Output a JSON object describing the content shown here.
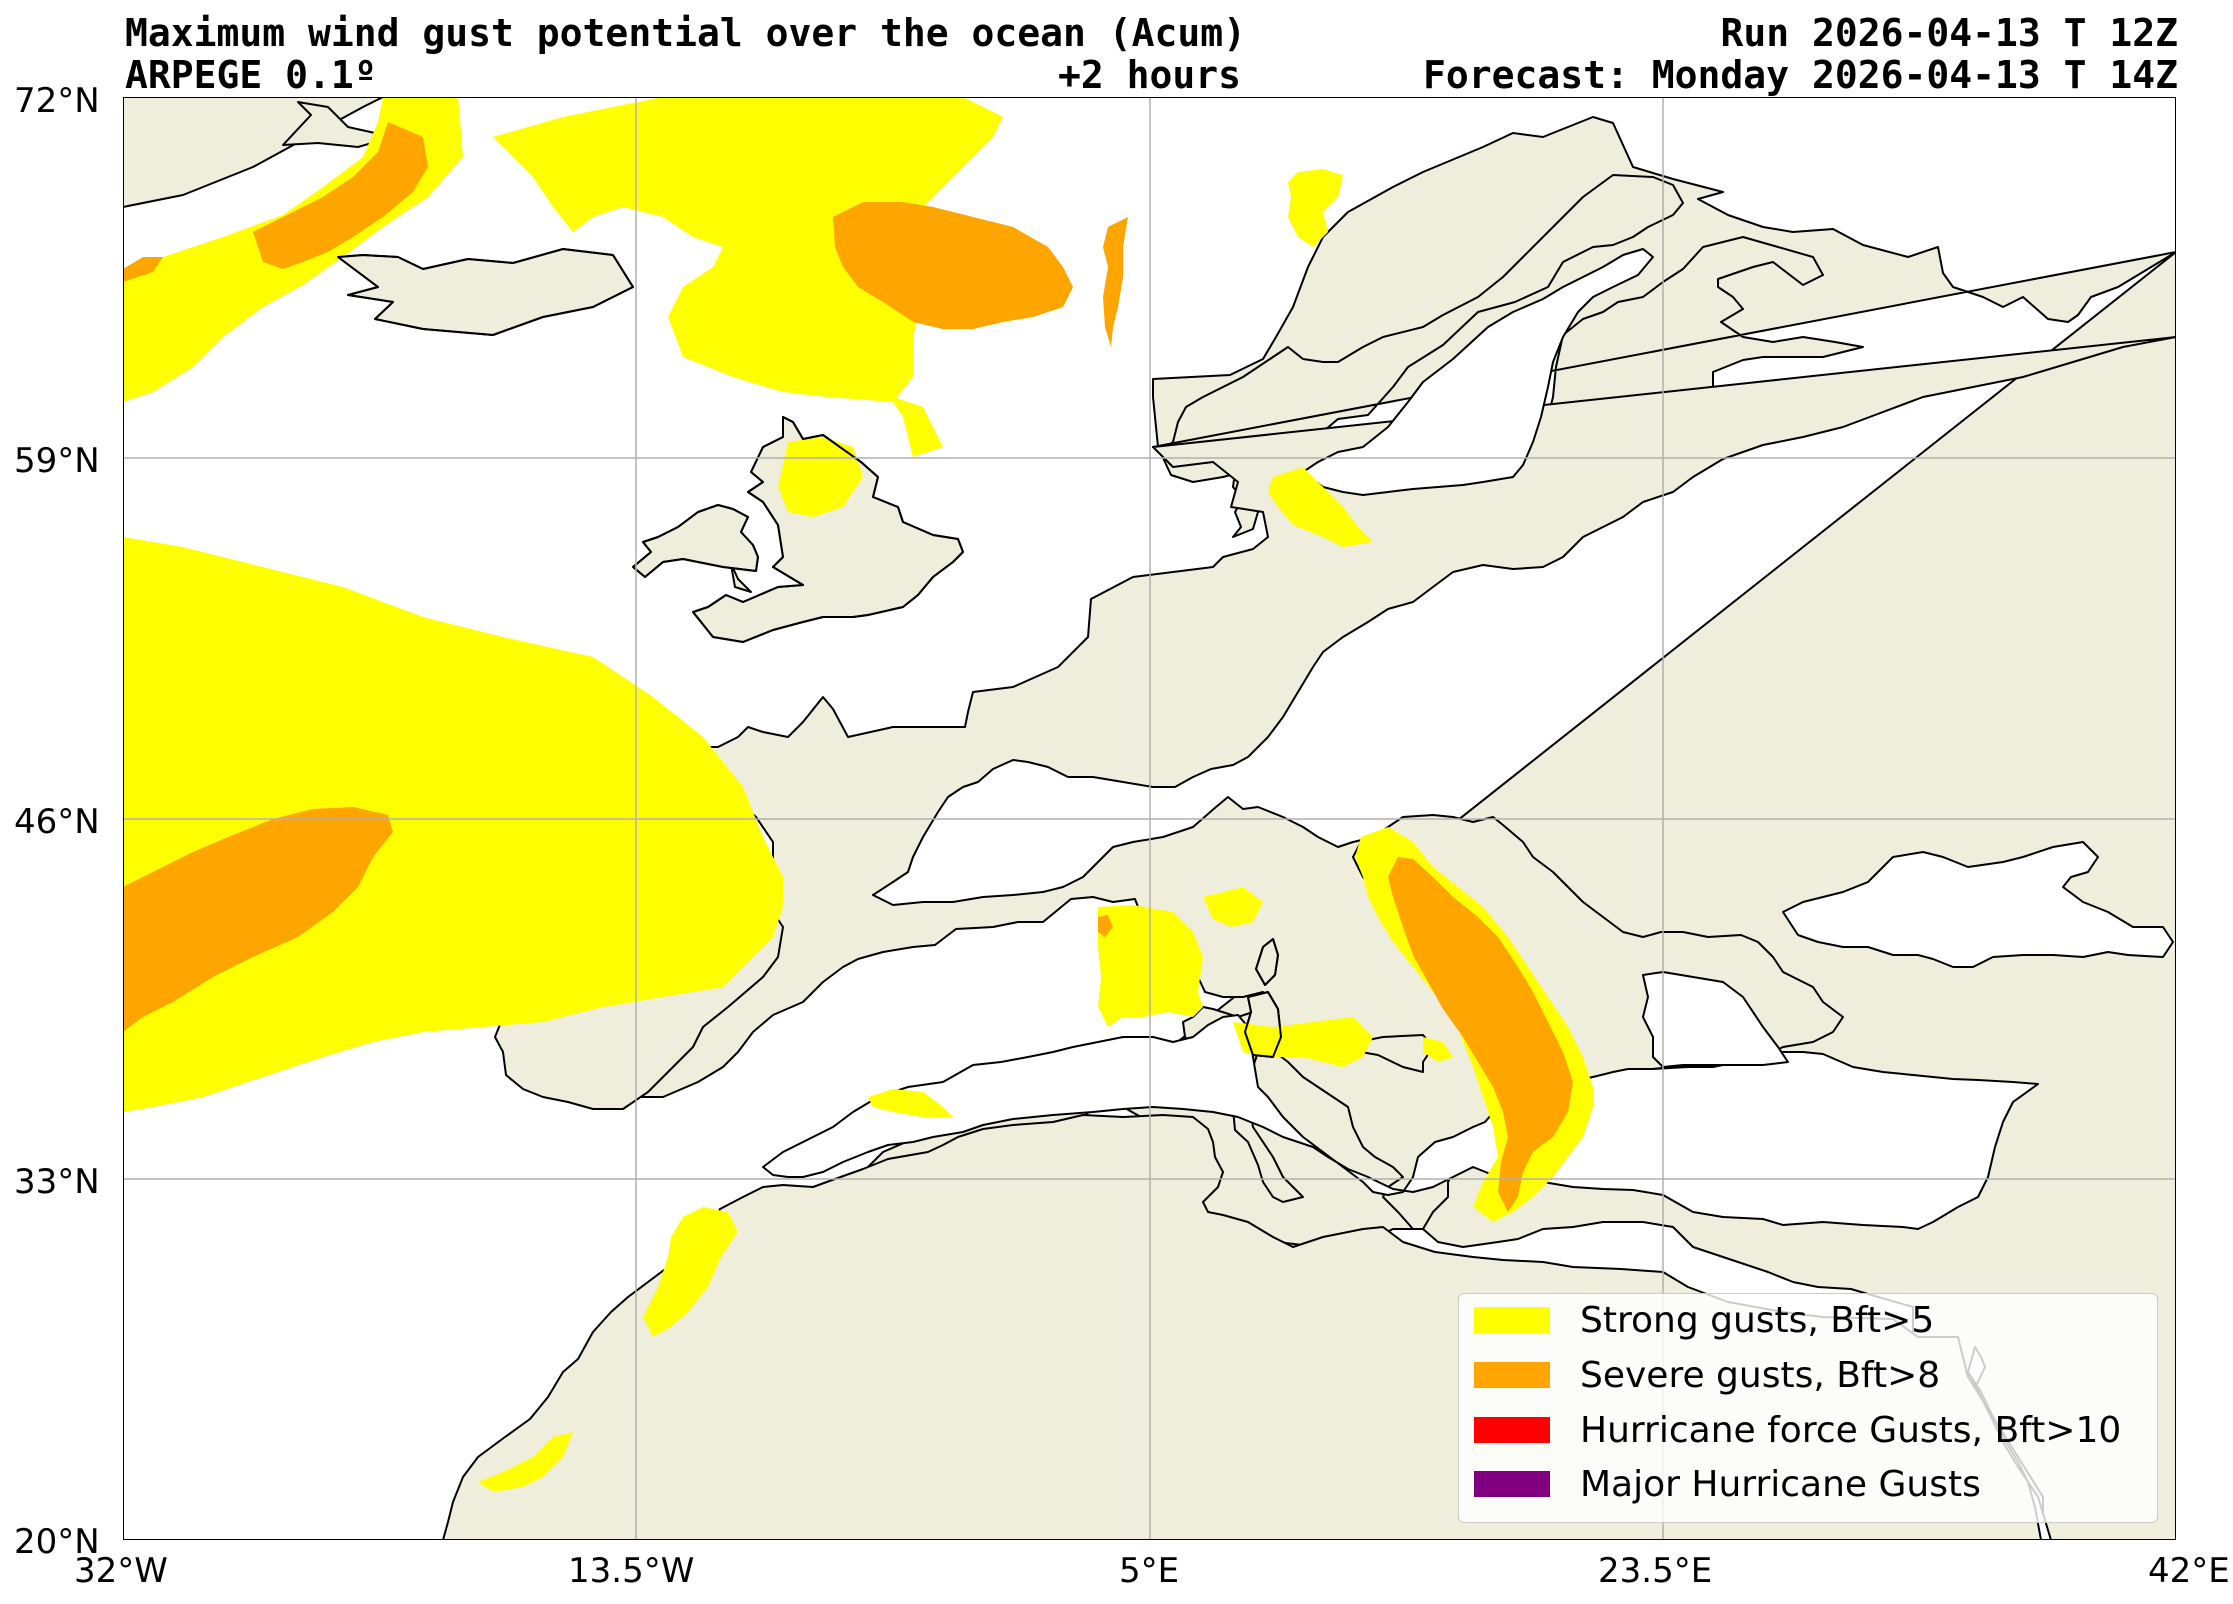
{
  "header": {
    "title": "Maximum wind gust potential over the ocean (Acum)",
    "model": "ARPEGE 0.1º",
    "lead_time": "+2 hours",
    "run": "Run 2026-04-13 T 12Z",
    "forecast": "Forecast: Monday 2026-04-13 T 14Z"
  },
  "axes": {
    "lat_ticks": [
      "72°N",
      "59°N",
      "46°N",
      "33°N",
      "20°N"
    ],
    "lon_ticks": [
      "32°W",
      "13.5°W",
      "5°E",
      "23.5°E",
      "42°E"
    ],
    "lat_range": [
      20,
      72
    ],
    "lon_range": [
      -32,
      42
    ],
    "grid": true
  },
  "legend": {
    "placement": "bottom-right",
    "items": [
      {
        "label": "Strong gusts, Bft>5",
        "color": "#ffff00"
      },
      {
        "label": "Severe gusts, Bft>8",
        "color": "#ffa500"
      },
      {
        "label": "Hurricane force Gusts, Bft>10",
        "color": "#ff0000"
      },
      {
        "label": "Major Hurricane Gusts",
        "color": "#800080"
      }
    ]
  },
  "colors": {
    "land": "#efeedc",
    "ocean": "#ffffff",
    "coast": "#000000",
    "grid": "#b0b0b0"
  }
}
